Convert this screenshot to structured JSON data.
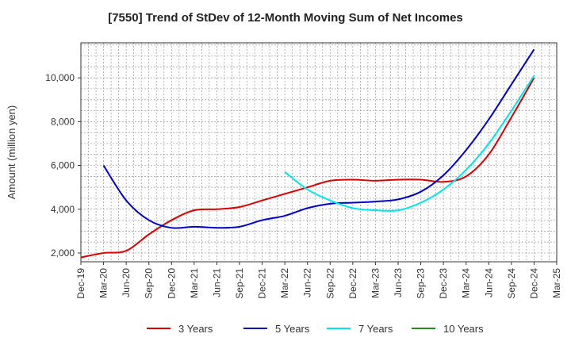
{
  "chart_data": {
    "type": "line",
    "title": "[7550]  Trend of StDev of 12-Month Moving Sum of Net Incomes",
    "xlabel": "",
    "ylabel": "Amount (million yen)",
    "x_ticks": [
      "Dec-19",
      "Mar-20",
      "Jun-20",
      "Sep-20",
      "Dec-20",
      "Mar-21",
      "Jun-21",
      "Sep-21",
      "Dec-21",
      "Mar-22",
      "Jun-22",
      "Sep-22",
      "Dec-22",
      "Mar-23",
      "Jun-23",
      "Sep-23",
      "Dec-23",
      "Mar-24",
      "Jun-24",
      "Sep-24",
      "Dec-24",
      "Mar-25"
    ],
    "y_ticks": [
      2000,
      4000,
      6000,
      8000,
      10000
    ],
    "y_tick_labels": [
      "2,000",
      "4,000",
      "6,000",
      "8,000",
      "10,000"
    ],
    "ylim": [
      1600,
      11600
    ],
    "grid": true,
    "legend_position": "bottom",
    "series": [
      {
        "name": "3 Years",
        "color": "#dd0000",
        "points": [
          [
            "Dec-19",
            1800
          ],
          [
            "Mar-20",
            2000
          ],
          [
            "Jun-20",
            2100
          ],
          [
            "Sep-20",
            2850
          ],
          [
            "Dec-20",
            3500
          ],
          [
            "Mar-21",
            3950
          ],
          [
            "Jun-21",
            4000
          ],
          [
            "Sep-21",
            4100
          ],
          [
            "Dec-21",
            4400
          ],
          [
            "Mar-22",
            4700
          ],
          [
            "Jun-22",
            5000
          ],
          [
            "Sep-22",
            5300
          ],
          [
            "Dec-22",
            5350
          ],
          [
            "Mar-23",
            5300
          ],
          [
            "Jun-23",
            5350
          ],
          [
            "Sep-23",
            5350
          ],
          [
            "Dec-23",
            5250
          ],
          [
            "Mar-24",
            5500
          ],
          [
            "Jun-24",
            6500
          ],
          [
            "Sep-24",
            8200
          ],
          [
            "Dec-24",
            10000
          ]
        ]
      },
      {
        "name": "5 Years",
        "color": "#0000cc",
        "points": [
          [
            "Mar-20",
            6000
          ],
          [
            "Jun-20",
            4400
          ],
          [
            "Sep-20",
            3500
          ],
          [
            "Dec-20",
            3150
          ],
          [
            "Mar-21",
            3200
          ],
          [
            "Jun-21",
            3150
          ],
          [
            "Sep-21",
            3200
          ],
          [
            "Dec-21",
            3500
          ],
          [
            "Mar-22",
            3700
          ],
          [
            "Jun-22",
            4050
          ],
          [
            "Sep-22",
            4250
          ],
          [
            "Dec-22",
            4300
          ],
          [
            "Mar-23",
            4350
          ],
          [
            "Jun-23",
            4450
          ],
          [
            "Sep-23",
            4800
          ],
          [
            "Dec-23",
            5550
          ],
          [
            "Mar-24",
            6700
          ],
          [
            "Jun-24",
            8100
          ],
          [
            "Sep-24",
            9700
          ],
          [
            "Dec-24",
            11300
          ]
        ]
      },
      {
        "name": "7 Years",
        "color": "#00e5ee",
        "points": [
          [
            "Mar-22",
            5700
          ],
          [
            "Jun-22",
            4900
          ],
          [
            "Sep-22",
            4400
          ],
          [
            "Dec-22",
            4050
          ],
          [
            "Mar-23",
            3950
          ],
          [
            "Jun-23",
            3950
          ],
          [
            "Sep-23",
            4300
          ],
          [
            "Dec-23",
            4900
          ],
          [
            "Mar-24",
            5800
          ],
          [
            "Jun-24",
            7000
          ],
          [
            "Sep-24",
            8500
          ],
          [
            "Dec-24",
            10100
          ]
        ]
      },
      {
        "name": "10 Years",
        "color": "#228b22",
        "points": []
      }
    ]
  }
}
